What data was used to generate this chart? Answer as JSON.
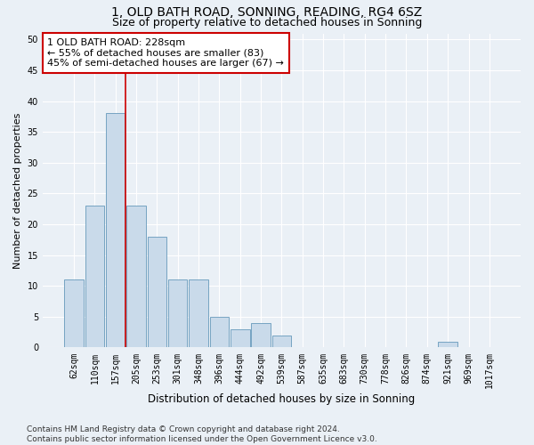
{
  "title": "1, OLD BATH ROAD, SONNING, READING, RG4 6SZ",
  "subtitle": "Size of property relative to detached houses in Sonning",
  "xlabel": "Distribution of detached houses by size in Sonning",
  "ylabel": "Number of detached properties",
  "categories": [
    "62sqm",
    "110sqm",
    "157sqm",
    "205sqm",
    "253sqm",
    "301sqm",
    "348sqm",
    "396sqm",
    "444sqm",
    "492sqm",
    "539sqm",
    "587sqm",
    "635sqm",
    "683sqm",
    "730sqm",
    "778sqm",
    "826sqm",
    "874sqm",
    "921sqm",
    "969sqm",
    "1017sqm"
  ],
  "values": [
    11,
    23,
    38,
    23,
    18,
    11,
    11,
    5,
    3,
    4,
    2,
    0,
    0,
    0,
    0,
    0,
    0,
    0,
    1,
    0,
    0
  ],
  "bar_color": "#c9daea",
  "bar_edge_color": "#6699bb",
  "property_line_x": 2.5,
  "annotation_line1": "1 OLD BATH ROAD: 228sqm",
  "annotation_line2": "← 55% of detached houses are smaller (83)",
  "annotation_line3": "45% of semi-detached houses are larger (67) →",
  "annotation_box_color": "#ffffff",
  "annotation_box_edge_color": "#cc0000",
  "line_color": "#cc0000",
  "ylim": [
    0,
    51
  ],
  "yticks": [
    0,
    5,
    10,
    15,
    20,
    25,
    30,
    35,
    40,
    45,
    50
  ],
  "background_color": "#eaf0f6",
  "grid_color": "#ffffff",
  "footer": "Contains HM Land Registry data © Crown copyright and database right 2024.\nContains public sector information licensed under the Open Government Licence v3.0.",
  "title_fontsize": 10,
  "subtitle_fontsize": 9,
  "xlabel_fontsize": 8.5,
  "ylabel_fontsize": 8,
  "tick_fontsize": 7,
  "annotation_fontsize": 8,
  "footer_fontsize": 6.5
}
